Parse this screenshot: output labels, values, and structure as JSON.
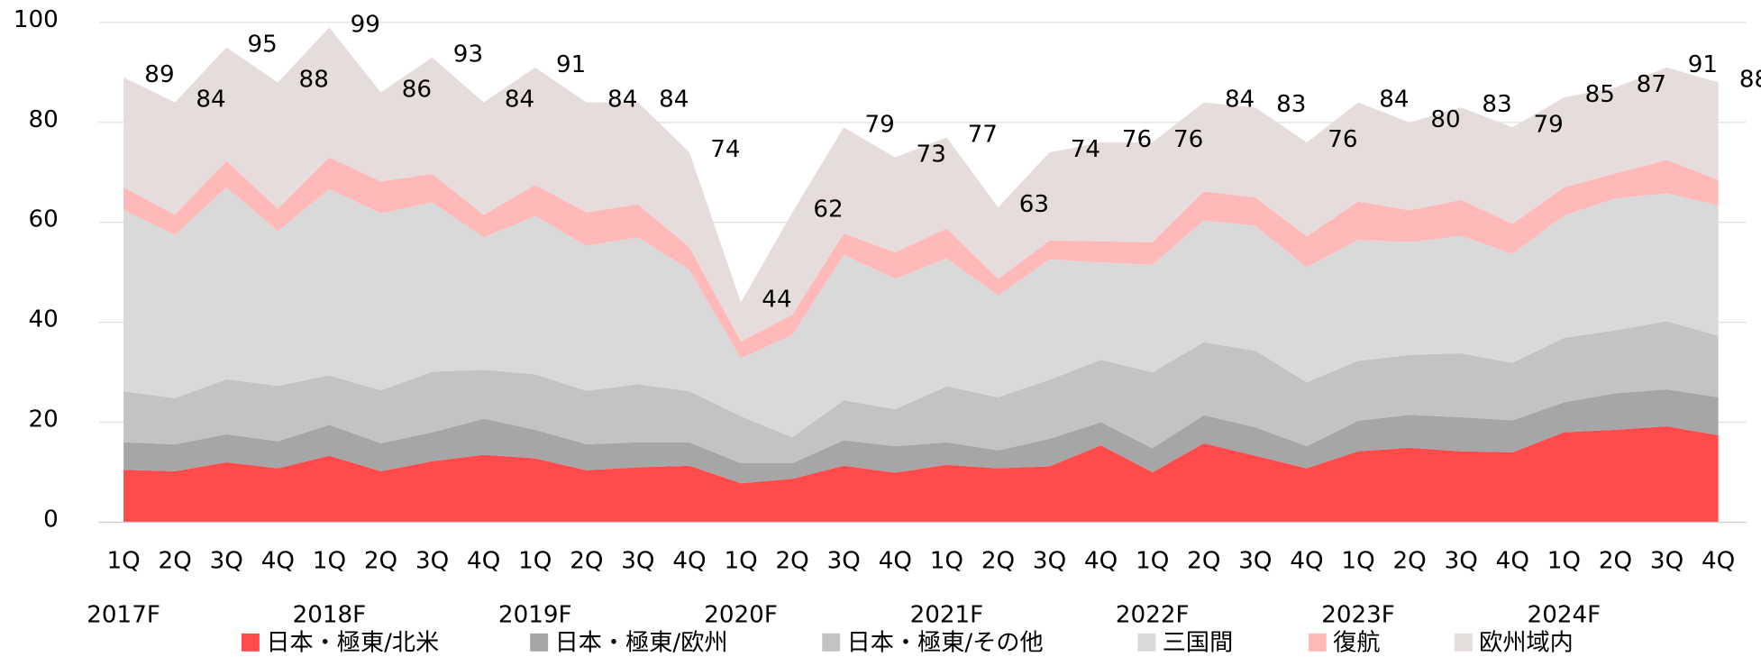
{
  "chart_data": {
    "type": "stacked_area",
    "categories": [
      "1Q",
      "2Q",
      "3Q",
      "4Q",
      "1Q",
      "2Q",
      "3Q",
      "4Q",
      "1Q",
      "2Q",
      "3Q",
      "4Q",
      "1Q",
      "2Q",
      "3Q",
      "4Q",
      "1Q",
      "2Q",
      "3Q",
      "4Q",
      "1Q",
      "2Q",
      "3Q",
      "4Q",
      "1Q",
      "2Q",
      "3Q",
      "4Q",
      "1Q",
      "2Q",
      "3Q",
      "4Q"
    ],
    "years": [
      "2017F",
      "2018F",
      "2019F",
      "2020F",
      "2021F",
      "2022F",
      "2023F",
      "2024F"
    ],
    "series": [
      {
        "name": "日本・極東/北米",
        "color": "#ff4b4b",
        "values": [
          10.5,
          10.2,
          12,
          10.8,
          13.3,
          10.2,
          12.2,
          13.5,
          12.8,
          10.4,
          11,
          11.3,
          7.8,
          8.7,
          11.3,
          9.9,
          11.5,
          10.8,
          11.2,
          15.4,
          10,
          15.8,
          13.3,
          10.8,
          14.2,
          14.9,
          14.2,
          14,
          18,
          18.5,
          19.2,
          17.4
        ]
      },
      {
        "name": "日本・極東/欧州",
        "color": "#a6a6a6",
        "values": [
          5.5,
          5.4,
          5.6,
          5.4,
          6.2,
          5.6,
          5.8,
          7.2,
          5.7,
          5.2,
          5,
          4.7,
          4,
          3.1,
          5.1,
          5.3,
          4.5,
          3.6,
          5.5,
          4.6,
          4.8,
          5.6,
          5.7,
          4.4,
          6.1,
          6.6,
          6.8,
          6.4,
          6,
          7.3,
          7.4,
          7.6
        ]
      },
      {
        "name": "日本・極東/その他",
        "color": "#c3c3c3",
        "values": [
          10.2,
          9.2,
          11,
          11.1,
          9.9,
          10.6,
          12.1,
          9.8,
          11.1,
          10.7,
          11.6,
          10.2,
          9.4,
          5.2,
          8,
          7.4,
          11.2,
          10.6,
          11.8,
          12.5,
          15.2,
          14.6,
          15.3,
          12.8,
          12,
          12,
          12.8,
          11.5,
          12.9,
          12.6,
          13.6,
          12.3
        ]
      },
      {
        "name": "三国間",
        "color": "#d9d9d9",
        "values": [
          36.3,
          32.7,
          38.4,
          31,
          37.3,
          35.4,
          33.9,
          26.5,
          31.7,
          29,
          29.4,
          24.3,
          11.6,
          20.5,
          29.1,
          26.1,
          25.6,
          20.4,
          24.1,
          19.5,
          21.5,
          24.4,
          25,
          23,
          24.2,
          22.5,
          23.5,
          21.8,
          24.5,
          26.4,
          25.6,
          26.1
        ]
      },
      {
        "name": "復航",
        "color": "#ffb9b9",
        "values": [
          4.5,
          4,
          5.3,
          4.4,
          6.3,
          6.4,
          5.7,
          4.5,
          6.2,
          6.7,
          6.6,
          4.5,
          3.4,
          4,
          4.3,
          5.3,
          6,
          3.3,
          3.8,
          4.2,
          4.5,
          5.8,
          5.7,
          6.2,
          7.7,
          6.4,
          7.2,
          6,
          5.6,
          5,
          6.7,
          5.1
        ]
      },
      {
        "name": "欧州域内",
        "color": "#e6dcdc",
        "values": [
          22,
          22.5,
          22.7,
          25.3,
          26,
          17.8,
          23.3,
          22.5,
          23.5,
          22,
          20.4,
          19,
          7.8,
          20.5,
          21.2,
          19,
          18.2,
          14.3,
          17.6,
          19.8,
          20,
          17.8,
          18,
          18.8,
          19.8,
          17.6,
          18.5,
          19.3,
          18,
          17.2,
          18.5,
          19.5
        ]
      }
    ],
    "total_labels": [
      89,
      84,
      95,
      88,
      99,
      86,
      93,
      84,
      91,
      84,
      84,
      74,
      44,
      62,
      79,
      73,
      77,
      63,
      74,
      76,
      76,
      84,
      83,
      76,
      84,
      80,
      83,
      79,
      85,
      87,
      91,
      88
    ],
    "ylim": [
      0,
      100
    ],
    "yticks": [
      0,
      20,
      40,
      60,
      80,
      100
    ],
    "grid": true
  }
}
